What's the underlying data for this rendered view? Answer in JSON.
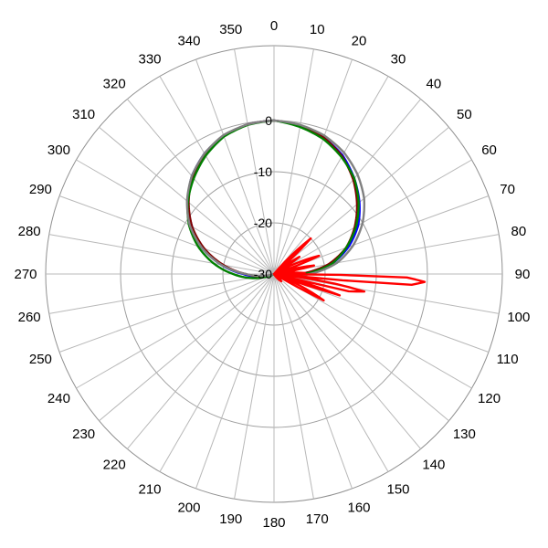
{
  "chart_data": {
    "type": "polar-line",
    "title": "",
    "angle_unit": "degrees",
    "angle_zero": "top",
    "angle_direction": "clockwise",
    "angle_ticks": [
      0,
      10,
      20,
      30,
      40,
      50,
      60,
      70,
      80,
      90,
      100,
      110,
      120,
      130,
      140,
      150,
      160,
      170,
      180,
      190,
      200,
      210,
      220,
      230,
      240,
      250,
      260,
      270,
      280,
      290,
      300,
      310,
      320,
      330,
      340,
      350
    ],
    "radial_range": [
      -30,
      0
    ],
    "radial_ticks": [
      0,
      -10,
      -20,
      -30
    ],
    "radial_tick_angle": 0,
    "grid": true,
    "legend": "none",
    "series": [
      {
        "color": "#0000ff",
        "points": [
          [
            0,
            0
          ],
          [
            10,
            -0.6
          ],
          [
            20,
            -1.6
          ],
          [
            30,
            -3.2
          ],
          [
            40,
            -5.6
          ],
          [
            50,
            -8.2
          ],
          [
            60,
            -11
          ],
          [
            70,
            -14.5
          ],
          [
            80,
            -18.5
          ],
          [
            90,
            -24
          ],
          [
            100,
            -28
          ],
          [
            110,
            -29.5
          ],
          [
            120,
            -30
          ],
          [
            240,
            -30
          ],
          [
            250,
            -29.5
          ],
          [
            260,
            -27
          ],
          [
            270,
            -24
          ],
          [
            280,
            -19.5
          ],
          [
            290,
            -15
          ],
          [
            300,
            -11.5
          ],
          [
            310,
            -8
          ],
          [
            320,
            -5
          ],
          [
            330,
            -2.8
          ],
          [
            340,
            -1.2
          ],
          [
            350,
            -0.3
          ],
          [
            360,
            0
          ]
        ]
      },
      {
        "color": "#800000",
        "points": [
          [
            0,
            0
          ],
          [
            10,
            -0.5
          ],
          [
            20,
            -1.6
          ],
          [
            30,
            -3.4
          ],
          [
            40,
            -5.9
          ],
          [
            50,
            -8.8
          ],
          [
            60,
            -11.8
          ],
          [
            70,
            -15
          ],
          [
            80,
            -19.2
          ],
          [
            90,
            -25
          ],
          [
            100,
            -29
          ],
          [
            110,
            -30
          ],
          [
            250,
            -30
          ],
          [
            260,
            -27.5
          ],
          [
            270,
            -24.5
          ],
          [
            280,
            -20
          ],
          [
            290,
            -15.5
          ],
          [
            300,
            -11.5
          ],
          [
            310,
            -8.2
          ],
          [
            320,
            -5.2
          ],
          [
            330,
            -2.9
          ],
          [
            340,
            -1.2
          ],
          [
            350,
            -0.3
          ],
          [
            360,
            0
          ]
        ]
      },
      {
        "color": "#008000",
        "points": [
          [
            0,
            0
          ],
          [
            10,
            -0.8
          ],
          [
            20,
            -1.9
          ],
          [
            30,
            -3.6
          ],
          [
            40,
            -5.6
          ],
          [
            50,
            -8.4
          ],
          [
            60,
            -11.5
          ],
          [
            70,
            -15
          ],
          [
            80,
            -18.5
          ],
          [
            90,
            -24
          ],
          [
            100,
            -27.5
          ],
          [
            110,
            -29.5
          ],
          [
            120,
            -30
          ],
          [
            240,
            -30
          ],
          [
            250,
            -28.5
          ],
          [
            260,
            -25.5
          ],
          [
            270,
            -22
          ],
          [
            280,
            -18
          ],
          [
            290,
            -14.2
          ],
          [
            300,
            -10.8
          ],
          [
            310,
            -8
          ],
          [
            320,
            -5.6
          ],
          [
            330,
            -3.3
          ],
          [
            340,
            -1.4
          ],
          [
            350,
            -0.4
          ],
          [
            360,
            0
          ]
        ]
      },
      {
        "color": "#808080",
        "points": [
          [
            0,
            0
          ],
          [
            10,
            -0.4
          ],
          [
            20,
            -1.2
          ],
          [
            30,
            -2.6
          ],
          [
            40,
            -4.6
          ],
          [
            50,
            -7
          ],
          [
            60,
            -10
          ],
          [
            70,
            -13.5
          ],
          [
            80,
            -17.5
          ],
          [
            90,
            -23
          ],
          [
            100,
            -28
          ],
          [
            110,
            -30
          ],
          [
            250,
            -30
          ],
          [
            260,
            -28
          ],
          [
            270,
            -24.5
          ],
          [
            280,
            -19.5
          ],
          [
            290,
            -15
          ],
          [
            300,
            -11
          ],
          [
            310,
            -7.8
          ],
          [
            320,
            -5
          ],
          [
            330,
            -2.8
          ],
          [
            340,
            -1.1
          ],
          [
            350,
            -0.3
          ],
          [
            360,
            0
          ]
        ]
      },
      {
        "color": "#ff0000",
        "points": [
          [
            0,
            -30
          ],
          [
            40,
            -30
          ],
          [
            46,
            -20
          ],
          [
            50,
            -30
          ],
          [
            56,
            -24
          ],
          [
            60,
            -30
          ],
          [
            68,
            -20.5
          ],
          [
            72,
            -30
          ],
          [
            78,
            -22
          ],
          [
            82,
            -30
          ],
          [
            86,
            -26
          ],
          [
            88,
            -24
          ],
          [
            90,
            -30
          ],
          [
            91.5,
            -4
          ],
          [
            93,
            -0.5
          ],
          [
            94.5,
            -3
          ],
          [
            96,
            -30
          ],
          [
            99,
            -18
          ],
          [
            101,
            -12
          ],
          [
            103,
            -15
          ],
          [
            104,
            -30
          ],
          [
            108,
            -16.5
          ],
          [
            110,
            -30
          ],
          [
            118,
            -19
          ],
          [
            120,
            -30
          ],
          [
            135,
            -28
          ],
          [
            150,
            -30
          ],
          [
            360,
            -30
          ]
        ]
      }
    ]
  }
}
